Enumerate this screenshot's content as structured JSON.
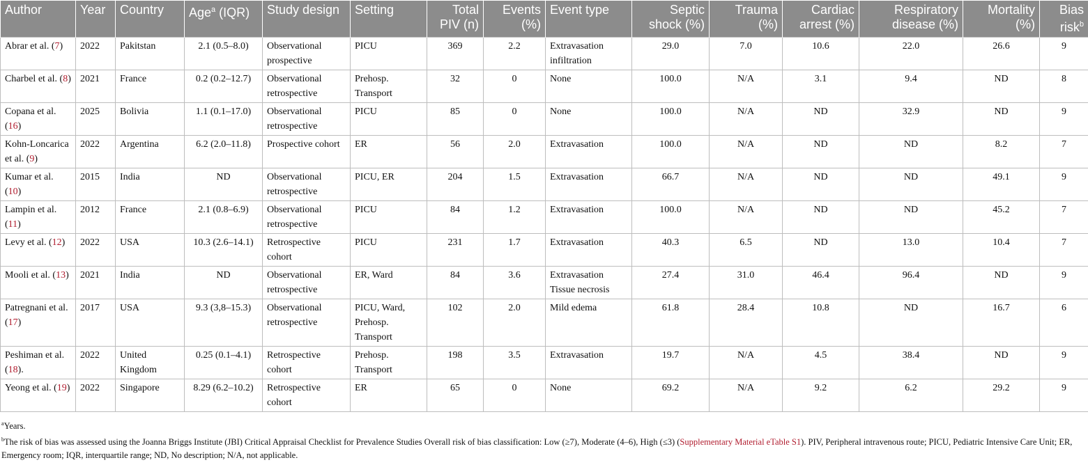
{
  "table": {
    "header": [
      "Author",
      "Year",
      "Country",
      {
        "before": "Age",
        "sup": "a",
        "after": " (IQR)"
      },
      "Study design",
      "Setting",
      "Total PIV (n)",
      "Events (%)",
      "Event type",
      "Septic shock (%)",
      "Trauma (%)",
      "Cardiac arrest (%)",
      "Respiratory disease (%)",
      "Mortality (%)",
      {
        "before": "Bias risk",
        "sup": "b"
      }
    ],
    "rows": [
      [
        [
          "Abrar et al. (",
          "7",
          ")"
        ],
        "2022",
        "Pakitstan",
        "2.1 (0.5–8.0)",
        "Observational prospective",
        "PICU",
        "369",
        "2.2",
        "Extravasation infiltration",
        "29.0",
        "7.0",
        "10.6",
        "22.0",
        "26.6",
        "9"
      ],
      [
        [
          "Charbel et al. (",
          "8",
          ")"
        ],
        "2021",
        "France",
        "0.2 (0.2–12.7)",
        "Observational retrospective",
        "Prehosp. Transport",
        "32",
        "0",
        "None",
        "100.0",
        "N/A",
        "3.1",
        "9.4",
        "ND",
        "8"
      ],
      [
        [
          "Copana et al. (",
          "16",
          ")"
        ],
        "2025",
        "Bolivia",
        "1.1 (0.1–17.0)",
        "Observational retrospective",
        "PICU",
        "85",
        "0",
        "None",
        "100.0",
        "N/A",
        "ND",
        "32.9",
        "ND",
        "9"
      ],
      [
        [
          "Kohn-Loncarica et al. (",
          "9",
          ")"
        ],
        "2022",
        "Argentina",
        "6.2 (2.0–11.8)",
        "Prospective cohort",
        "ER",
        "56",
        "2.0",
        "Extravasation",
        "100.0",
        "N/A",
        "ND",
        "ND",
        "8.2",
        "7"
      ],
      [
        [
          "Kumar et al. (",
          "10",
          ")"
        ],
        "2015",
        "India",
        "ND",
        "Observational retrospective",
        "PICU, ER",
        "204",
        "1.5",
        "Extravasation",
        "66.7",
        "N/A",
        "ND",
        "ND",
        "49.1",
        "9"
      ],
      [
        [
          "Lampin et al. (",
          "11",
          ")"
        ],
        "2012",
        "France",
        "2.1 (0.8–6.9)",
        "Observational retrospective",
        "PICU",
        "84",
        "1.2",
        "Extravasation",
        "100.0",
        "N/A",
        "ND",
        "ND",
        "45.2",
        "7"
      ],
      [
        [
          "Levy et al. (",
          "12",
          ")"
        ],
        "2022",
        "USA",
        "10.3 (2.6–14.1)",
        "Retrospective cohort",
        "PICU",
        "231",
        "1.7",
        "Extravasation",
        "40.3",
        "6.5",
        "ND",
        "13.0",
        "10.4",
        "7"
      ],
      [
        [
          "Mooli et al. (",
          "13",
          ")"
        ],
        "2021",
        "India",
        "ND",
        "Observational retrospective",
        "ER, Ward",
        "84",
        "3.6",
        "Extravasation Tissue necrosis",
        "27.4",
        "31.0",
        "46.4",
        "96.4",
        "ND",
        "9"
      ],
      [
        [
          "Patregnani et al. (",
          "17",
          ")"
        ],
        "2017",
        "USA",
        "9.3 (3,8–15.3)",
        "Observational retrospective",
        "PICU, Ward, Prehosp. Transport",
        "102",
        "2.0",
        "Mild edema",
        "61.8",
        "28.4",
        "10.8",
        "ND",
        "16.7",
        "6"
      ],
      [
        [
          "Peshiman et al. (",
          "18",
          ")."
        ],
        "2022",
        "United Kingdom",
        "0.25 (0.1–4.1)",
        "Retrospective cohort",
        "Prehosp. Transport",
        "198",
        "3.5",
        "Extravasation",
        "19.7",
        "N/A",
        "4.5",
        "38.4",
        "ND",
        "9"
      ],
      [
        [
          "Yeong et al. (",
          "19",
          ")"
        ],
        "2022",
        "Singapore",
        "8.29 (6.2–10.2)",
        "Retrospective cohort",
        "ER",
        "65",
        "0",
        "None",
        "69.2",
        "N/A",
        "9.2",
        "6.2",
        "29.2",
        "9"
      ]
    ]
  },
  "footnotes": [
    {
      "sup": "a",
      "parts": [
        "Years."
      ]
    },
    {
      "sup": "b",
      "parts": [
        "The risk of bias was assessed using the Joanna Briggs Institute (JBI) Critical Appraisal Checklist for Prevalence Studies Overall risk of bias classification: Low (≥7), Moderate (4–6), High (≤3) (",
        "Supplementary Material eTable S1",
        "). PIV, Peripheral intravenous route; PICU, Pediatric Intensive Care Unit; ER, Emergency room; IQR, interquartile range; ND, No description; N/A, not applicable."
      ]
    }
  ]
}
